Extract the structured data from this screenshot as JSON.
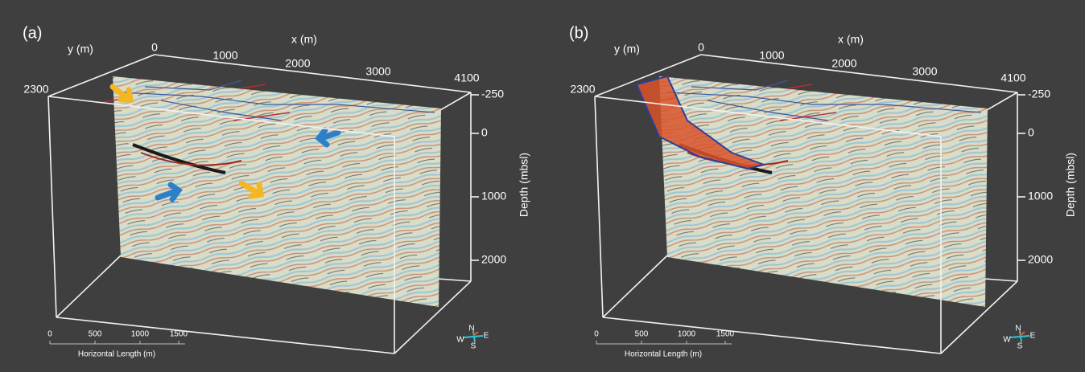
{
  "panels": [
    {
      "label": "(a)",
      "y_axis_title": "y (m)",
      "x_axis_title": "x (m)",
      "x_ticks": [
        0,
        1000,
        2000,
        3000,
        4100
      ],
      "y_tick": 2300,
      "depth_ticks": [
        -250,
        0,
        1000,
        2000
      ],
      "depth_axis_title": "Depth (mbsl)",
      "scale_ticks": [
        0,
        500,
        1000,
        1500
      ],
      "scale_title": "Horizontal Length (m)",
      "compass": [
        "N",
        "W",
        "E",
        "S"
      ]
    },
    {
      "label": "(b)",
      "y_axis_title": "y (m)",
      "x_axis_title": "x (m)",
      "x_ticks": [
        0,
        1000,
        2000,
        3000,
        4100
      ],
      "y_tick": 2300,
      "depth_ticks": [
        -250,
        0,
        1000,
        2000
      ],
      "depth_axis_title": "Depth (mbsl)",
      "scale_ticks": [
        0,
        500,
        1000,
        1500
      ],
      "scale_title": "Horizontal Length (m)",
      "compass": [
        "N",
        "W",
        "E",
        "S"
      ]
    }
  ]
}
